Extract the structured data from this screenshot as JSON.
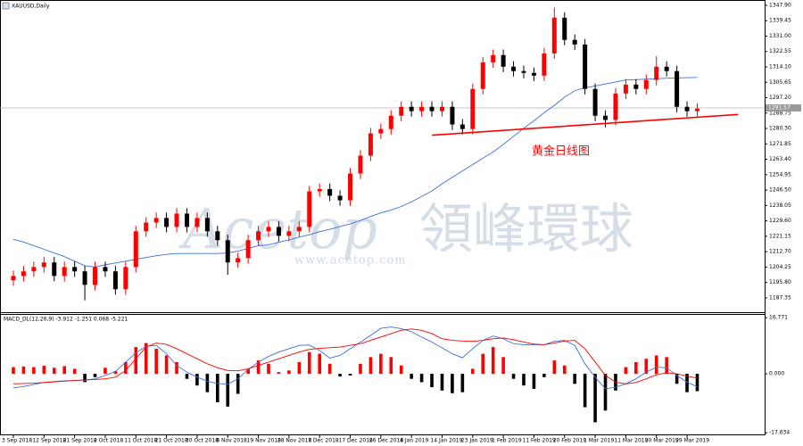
{
  "watermark": {
    "brand": "Acetop",
    "name": "領峰環球",
    "url": "www.acetop.com"
  },
  "chart_data": [
    {
      "type": "candlestick",
      "title": "XAUUSD,Daily",
      "categories": [
        "3 Sep 2018",
        null,
        null,
        "12 Sep 2018",
        null,
        null,
        "21 Sep 2018",
        null,
        null,
        "2 Oct 2018",
        null,
        null,
        "11 Oct 2018",
        null,
        null,
        "21 Oct 2018",
        null,
        null,
        "30 Oct 2018",
        null,
        null,
        "8 Nov 2018",
        null,
        null,
        "19 Nov 2018",
        null,
        null,
        "28 Nov 2018",
        null,
        null,
        "7 Dec 2018",
        null,
        null,
        "17 Dec 2018",
        null,
        null,
        "26 Dec 2018",
        null,
        null,
        "4 Jan 2019",
        null,
        null,
        "14 Jan 2019",
        null,
        null,
        "23 Jan 2019",
        null,
        null,
        "1 Feb 2019",
        null,
        null,
        "11 Feb 2019",
        null,
        null,
        "20 Feb 2019",
        null,
        null,
        "1 Mar 2019",
        null,
        null,
        "11 Mar 2019",
        null,
        null,
        "20 Mar 2019",
        null,
        null,
        "29 Mar 2019",
        null
      ],
      "open": [
        1197,
        1199.4,
        1201.9,
        1204.3,
        1206.8,
        1199.4,
        1204.3,
        1201.9,
        1194.5,
        1204.3,
        1201.9,
        1192.1,
        1204.3,
        1223.9,
        1228.7,
        1231.2,
        1226.3,
        1233.6,
        1226.3,
        1231.2,
        1223.9,
        1219.0,
        1206.8,
        1209.2,
        1219.0,
        1223.9,
        1226.3,
        1221.4,
        1223.9,
        1226.3,
        1245.8,
        1247.1,
        1243.4,
        1240.9,
        1255.6,
        1265.4,
        1277.6,
        1280.0,
        1287.3,
        1292.2,
        1289.8,
        1292.2,
        1289.8,
        1292.2,
        1282.5,
        1280.0,
        1302.0,
        1316.6,
        1320.6,
        1314.2,
        1311.8,
        1310.8,
        1309.3,
        1321.5,
        1341.1,
        1328.9,
        1326.4,
        1302.0,
        1287.3,
        1285.0,
        1299.5,
        1304.4,
        1302.0,
        1306.9,
        1314.2,
        1311.8,
        1292.2,
        1289.8
      ],
      "high": [
        1202.4,
        1204.9,
        1207.3,
        1209.8,
        1209.8,
        1207.3,
        1207.3,
        1204.9,
        1207.3,
        1207.3,
        1204.9,
        1207.3,
        1226.9,
        1231.7,
        1234.2,
        1234.2,
        1236.6,
        1236.6,
        1234.2,
        1234.2,
        1226.9,
        1222.0,
        1212.2,
        1222.0,
        1226.9,
        1229.3,
        1229.3,
        1226.9,
        1229.3,
        1248.8,
        1250.1,
        1250.1,
        1246.4,
        1258.6,
        1268.4,
        1280.6,
        1283.0,
        1290.3,
        1295.2,
        1295.2,
        1295.2,
        1295.2,
        1295.2,
        1295.2,
        1285.5,
        1305.0,
        1319.6,
        1323.6,
        1323.6,
        1317.2,
        1314.8,
        1313.8,
        1324.5,
        1346.6,
        1344.1,
        1331.9,
        1329.4,
        1305.0,
        1290.3,
        1302.5,
        1307.4,
        1307.4,
        1309.9,
        1320.0,
        1317.2,
        1314.8,
        1295.2,
        1294.2
      ],
      "low": [
        1194.0,
        1196.4,
        1198.9,
        1201.3,
        1196.4,
        1196.4,
        1198.9,
        1186.0,
        1191.5,
        1198.9,
        1189.1,
        1189.1,
        1201.3,
        1220.9,
        1225.7,
        1223.3,
        1223.3,
        1223.3,
        1223.3,
        1220.9,
        1216.0,
        1200.0,
        1203.8,
        1206.2,
        1216.0,
        1220.9,
        1218.4,
        1218.4,
        1220.9,
        1223.3,
        1242.8,
        1240.4,
        1237.9,
        1237.9,
        1252.6,
        1262.4,
        1274.6,
        1277.0,
        1284.3,
        1286.8,
        1286.8,
        1286.8,
        1286.8,
        1279.5,
        1277.0,
        1277.0,
        1299.0,
        1313.6,
        1311.2,
        1308.8,
        1307.8,
        1306.3,
        1306.3,
        1318.5,
        1325.9,
        1323.4,
        1299.0,
        1284.3,
        1281.0,
        1282.0,
        1296.5,
        1299.0,
        1299.0,
        1303.9,
        1308.8,
        1289.2,
        1286.8,
        1286.8
      ],
      "close": [
        1199.4,
        1201.9,
        1204.3,
        1206.8,
        1199.4,
        1204.3,
        1201.9,
        1194.5,
        1204.3,
        1201.9,
        1192.1,
        1204.3,
        1223.9,
        1228.7,
        1231.2,
        1226.3,
        1233.6,
        1226.3,
        1231.2,
        1223.9,
        1219.0,
        1206.8,
        1209.2,
        1219.0,
        1223.9,
        1226.3,
        1221.4,
        1223.9,
        1226.3,
        1245.8,
        1247.1,
        1243.4,
        1240.9,
        1255.6,
        1265.4,
        1277.6,
        1280.0,
        1287.3,
        1292.2,
        1289.8,
        1292.2,
        1289.8,
        1292.2,
        1282.5,
        1280.0,
        1302.0,
        1316.6,
        1320.6,
        1314.2,
        1311.8,
        1310.8,
        1309.3,
        1321.5,
        1341.1,
        1328.9,
        1326.4,
        1302.0,
        1287.3,
        1285.0,
        1299.5,
        1304.4,
        1302.0,
        1306.9,
        1314.2,
        1311.8,
        1292.2,
        1289.8,
        1291.2
      ],
      "up_color": "#ff0000",
      "down_color": "#000000",
      "lines": [
        {
          "color": "#3c6fd6",
          "values": [
            1219.5,
            1218,
            1216,
            1214,
            1212,
            1210,
            1207.5,
            1205,
            1204.3,
            1205.5,
            1206.5,
            1207.5,
            1208.5,
            1209.5,
            1210.5,
            1211.2,
            1211.7,
            1211.7,
            1211.7,
            1211.7,
            1211.7,
            1212,
            1213,
            1214.5,
            1216,
            1216.5,
            1217.9,
            1219.2,
            1220.7,
            1222,
            1223.7,
            1225,
            1226.5,
            1227.9,
            1229.9,
            1232,
            1234,
            1235.5,
            1237.5,
            1240,
            1243,
            1246,
            1250,
            1253.5,
            1257,
            1260.5,
            1264,
            1267.5,
            1271.5,
            1276,
            1280.5,
            1284.5,
            1289,
            1293,
            1297.5,
            1301,
            1302.7,
            1303.6,
            1304.7,
            1305.8,
            1306.9,
            1307.1,
            1307.4,
            1307.6,
            1307.9,
            1308,
            1308.2,
            1308.3
          ]
        }
      ],
      "trendline": {
        "color": "#ff0000",
        "x": [
          41,
          71
        ],
        "y": [
          1276.6,
          1288.0
        ]
      },
      "annotation": "黄金日线图",
      "current_price": 1291.57,
      "ylim": [
        1179.5,
        1350.8
      ],
      "yticks": [
        {
          "value": 1347.9,
          "label": "1347.90"
        },
        1339.45,
        {
          "value": 1331,
          "label": "1331.00"
        },
        1322.55,
        {
          "value": 1314.1,
          "label": "1314.10"
        },
        1305.65,
        {
          "value": 1297.2,
          "label": "1297.20"
        },
        1288.75,
        {
          "value": 1280.3,
          "label": "1280.30"
        },
        1271.85,
        {
          "value": 1263.4,
          "label": "1263.40"
        },
        1254.95,
        {
          "value": 1246.5,
          "label": "1246.50"
        },
        1238.05,
        {
          "value": 1229.6,
          "label": "1229.60"
        },
        1221.15,
        {
          "value": 1212.7,
          "label": "1212.70"
        },
        1204.25,
        {
          "value": 1195.8,
          "label": "1195.80"
        },
        1187.35
      ]
    },
    {
      "type": "macd",
      "title": "MACD_DL(12,26,9) -3.912 -1.251 0.068 -5.221",
      "histogram": {
        "up_color": "#ff0000",
        "down_color": "#000000",
        "values": [
          2.0,
          2.2,
          2.0,
          2.4,
          1.8,
          2.3,
          1.5,
          -2.5,
          -1.0,
          1.8,
          0.8,
          3.5,
          8.0,
          9.2,
          7.5,
          5.5,
          3.5,
          -1.5,
          -3.5,
          -5.5,
          -8.5,
          -9.8,
          -6.0,
          1.5,
          4.0,
          3.0,
          0.5,
          1.0,
          3.5,
          6.5,
          6.0,
          3.0,
          -0.8,
          -0.5,
          3.0,
          5.0,
          6.0,
          5.0,
          2.5,
          -1.5,
          -2.5,
          -4.0,
          -5.0,
          -5.8,
          -5.5,
          1.5,
          6.0,
          8.0,
          5.0,
          -1.5,
          -3.5,
          -4.5,
          -1.0,
          4.0,
          2.5,
          -3.0,
          -10.0,
          -14.5,
          -11.0,
          -5.0,
          2.0,
          3.5,
          4.5,
          5.5,
          5.0,
          -3.0,
          -5.5,
          -5.2
        ]
      },
      "series": [
        {
          "color": "#3c6fd6",
          "values": [
            -4.2,
            -3.8,
            -3.2,
            -2.6,
            -2.3,
            -2.1,
            -2.0,
            -1.9,
            -1.5,
            -0.5,
            0.7,
            3.5,
            6.3,
            8.2,
            8.5,
            6.0,
            2.5,
            0.5,
            -1.0,
            -2.2,
            -2.9,
            -3.1,
            -1.5,
            1.3,
            3.5,
            5.2,
            6.5,
            7.5,
            8.5,
            8.6,
            7.0,
            4.7,
            5.5,
            7.5,
            9.5,
            11.5,
            13.6,
            14.0,
            13.5,
            12.6,
            11.0,
            9.5,
            7.8,
            6.0,
            4.8,
            7.5,
            10.0,
            11.3,
            10.5,
            9.0,
            8.7,
            8.7,
            8.7,
            9.7,
            10.0,
            8.5,
            3.0,
            -1.0,
            -4.5,
            -4.0,
            -3.0,
            -1.5,
            0.5,
            2.0,
            1.8,
            -0.5,
            -2.5,
            -3.9
          ]
        },
        {
          "color": "#ff0000",
          "values": [
            -3.0,
            -2.9,
            -2.8,
            -2.6,
            -2.4,
            -2.2,
            -2.0,
            -1.8,
            -1.7,
            -1.5,
            -1.0,
            1.0,
            4.5,
            8.0,
            9.2,
            8.8,
            7.5,
            6.0,
            4.5,
            3.0,
            1.8,
            1.0,
            0.9,
            1.5,
            2.5,
            3.5,
            4.5,
            5.5,
            6.5,
            7.3,
            7.6,
            7.8,
            8.0,
            8.5,
            9.0,
            10.0,
            11.0,
            12.0,
            13.0,
            13.4,
            13.0,
            12.0,
            10.5,
            10.0,
            9.8,
            9.7,
            10.0,
            10.5,
            10.7,
            10.2,
            9.5,
            8.9,
            8.7,
            9.2,
            9.8,
            10.0,
            7.5,
            3.5,
            -0.5,
            -2.5,
            -3.0,
            -2.6,
            -1.5,
            -0.3,
            0.3,
            0.0,
            -0.7,
            -1.3
          ]
        }
      ],
      "ylim": [
        -18.4,
        17.9
      ],
      "yticks": [
        16.771,
        {
          "value": 0,
          "label": "0.000"
        },
        -17.634
      ]
    }
  ]
}
